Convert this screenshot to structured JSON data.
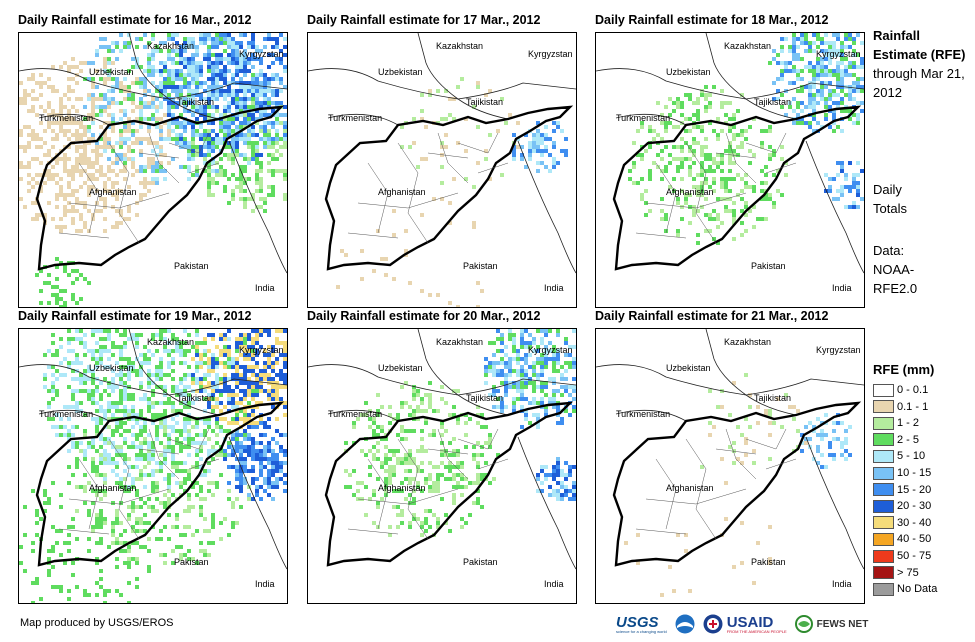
{
  "panels": [
    {
      "title": "Daily Rainfall estimate for 16 Mar., 2012",
      "level": "high"
    },
    {
      "title": "Daily Rainfall estimate for 17 Mar., 2012",
      "level": "low"
    },
    {
      "title": "Daily Rainfall estimate for 18 Mar., 2012",
      "level": "medium"
    },
    {
      "title": "Daily Rainfall estimate for 19 Mar., 2012",
      "level": "veryhigh"
    },
    {
      "title": "Daily Rainfall estimate for 20 Mar., 2012",
      "level": "medium"
    },
    {
      "title": "Daily Rainfall estimate for 21 Mar., 2012",
      "level": "low"
    }
  ],
  "countries": {
    "kazakhstan": "Kazakhstan",
    "kyrgyzstan": "Kyrgyzstan",
    "uzbekistan": "Uzbekistan",
    "tajikistan": "Tajikistan",
    "turkmenistan": "Turkmenistan",
    "afghanistan": "Afghanistan",
    "pakistan": "Pakistan",
    "india": "India"
  },
  "side": {
    "title_bold": "Rainfall Estimate (RFE)",
    "title_rest": "through Mar 21, 2012",
    "daily": "Daily Totals",
    "data_src": "Data: NOAA-RFE2.0"
  },
  "legend": {
    "title": "RFE (mm)",
    "items": [
      {
        "label": "0 - 0.1",
        "color": "#ffffff"
      },
      {
        "label": "0.1 - 1",
        "color": "#e8d5b0"
      },
      {
        "label": "1 - 2",
        "color": "#b4ec9e"
      },
      {
        "label": "2 - 5",
        "color": "#5fdc5f"
      },
      {
        "label": "5 - 10",
        "color": "#aee8f8"
      },
      {
        "label": "10 - 15",
        "color": "#79c2f5"
      },
      {
        "label": "15 - 20",
        "color": "#3f8ef0"
      },
      {
        "label": "20 - 30",
        "color": "#1e5ed8"
      },
      {
        "label": "30 - 40",
        "color": "#f5dc7a"
      },
      {
        "label": "40 - 50",
        "color": "#f5a623"
      },
      {
        "label": "50 - 75",
        "color": "#ee3a1c"
      },
      {
        "label": "> 75",
        "color": "#a51414"
      },
      {
        "label": "No Data",
        "color": "#9b9b9b"
      }
    ]
  },
  "footer": "Map produced by USGS/EROS",
  "logos": {
    "usgs": "USGS",
    "usgs_tag": "science for a changing world",
    "noaa": "NOAA",
    "usaid": "USAID",
    "usaid_tag": "FROM THE AMERICAN PEOPLE",
    "fews": "FEWS NET"
  }
}
